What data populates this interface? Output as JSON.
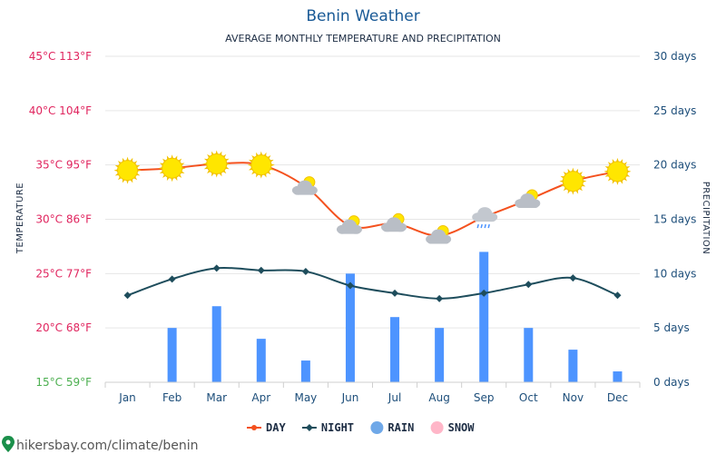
{
  "chart_data": {
    "type": "line",
    "title": "Benin Weather",
    "subtitle": "AVERAGE MONTHLY TEMPERATURE AND PRECIPITATION",
    "categories": [
      "Jan",
      "Feb",
      "Mar",
      "Apr",
      "May",
      "Jun",
      "Jul",
      "Aug",
      "Sep",
      "Oct",
      "Nov",
      "Dec"
    ],
    "y_left": {
      "label": "TEMPERATURE",
      "range": [
        15,
        45
      ],
      "ticks": [
        {
          "value": 45,
          "label": "45°C 113°F",
          "color": "#e0245e"
        },
        {
          "value": 40,
          "label": "40°C 104°F",
          "color": "#e0245e"
        },
        {
          "value": 35,
          "label": "35°C 95°F",
          "color": "#e0245e"
        },
        {
          "value": 30,
          "label": "30°C 86°F",
          "color": "#e0245e"
        },
        {
          "value": 25,
          "label": "25°C 77°F",
          "color": "#e0245e"
        },
        {
          "value": 20,
          "label": "20°C 68°F",
          "color": "#e0245e"
        },
        {
          "value": 15,
          "label": "15°C 59°F",
          "color": "#4caf50"
        }
      ]
    },
    "y_right": {
      "label": "PRECIPITATION",
      "range": [
        0,
        30
      ],
      "ticks": [
        {
          "value": 30,
          "label": "30 days"
        },
        {
          "value": 25,
          "label": "25 days"
        },
        {
          "value": 20,
          "label": "20 days"
        },
        {
          "value": 15,
          "label": "15 days"
        },
        {
          "value": 10,
          "label": "10 days"
        },
        {
          "value": 5,
          "label": "5 days"
        },
        {
          "value": 0,
          "label": "0 days"
        }
      ]
    },
    "grid": true,
    "series": [
      {
        "name": "DAY",
        "kind": "line",
        "axis": "left",
        "color": "#f4511e",
        "values": [
          34.5,
          34.7,
          35.1,
          35.0,
          33.0,
          29.4,
          29.6,
          28.5,
          30.2,
          31.8,
          33.5,
          34.4
        ]
      },
      {
        "name": "NIGHT",
        "kind": "line",
        "axis": "left",
        "color": "#1e4d5c",
        "values": [
          23.0,
          24.5,
          25.5,
          25.3,
          25.2,
          23.9,
          23.2,
          22.7,
          23.2,
          24.0,
          24.6,
          23.0
        ]
      },
      {
        "name": "RAIN",
        "kind": "bar",
        "axis": "right",
        "color": "#4d94ff",
        "values": [
          0,
          5,
          7,
          4,
          2,
          10,
          6,
          5,
          12,
          5,
          3,
          1
        ]
      },
      {
        "name": "SNOW",
        "kind": "bar",
        "axis": "right",
        "color": "#ffb6c8",
        "values": [
          0,
          0,
          0,
          0,
          0,
          0,
          0,
          0,
          0,
          0,
          0,
          0
        ]
      }
    ],
    "weather_icons": [
      "sun-icon",
      "sun-icon",
      "sun-icon",
      "sun-icon",
      "partly-cloudy-icon",
      "partly-cloudy-icon",
      "partly-cloudy-icon",
      "partly-cloudy-icon",
      "rain-cloud-icon",
      "partly-cloudy-icon",
      "sun-icon",
      "sun-icon"
    ],
    "legend": {
      "placement": "bottom",
      "items": [
        {
          "label": "DAY",
          "color": "#f4511e",
          "marker": "line-dot"
        },
        {
          "label": "NIGHT",
          "color": "#1e4d5c",
          "marker": "line-diamond"
        },
        {
          "label": "RAIN",
          "color": "#6fa8e8",
          "marker": "circle"
        },
        {
          "label": "SNOW",
          "color": "#ffb6c8",
          "marker": "circle"
        }
      ]
    }
  },
  "source": "hikersbay.com/climate/benin"
}
